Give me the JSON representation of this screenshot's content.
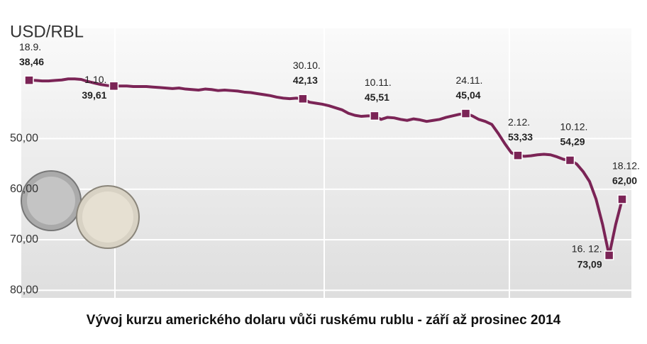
{
  "chart_data": {
    "type": "line",
    "title": "USD/RBL",
    "caption": "Vývoj kurzu amerického dolaru vůči ruskému rublu - září až prosinec 2014",
    "y_inverted": true,
    "grid": true,
    "ylim": [
      27.5,
      81.5
    ],
    "yticks": [
      {
        "value": 50,
        "label": "50,00"
      },
      {
        "value": 60,
        "label": "60,00"
      },
      {
        "value": 70,
        "label": "70,00"
      },
      {
        "value": 80,
        "label": "80,00"
      }
    ],
    "categories": [
      "18.9.",
      null,
      null,
      null,
      null,
      null,
      null,
      null,
      null,
      null,
      null,
      null,
      null,
      "1.10.",
      null,
      null,
      null,
      null,
      null,
      null,
      null,
      null,
      null,
      null,
      null,
      null,
      null,
      null,
      null,
      null,
      null,
      null,
      null,
      null,
      null,
      null,
      null,
      null,
      null,
      null,
      null,
      null,
      "30.10.",
      null,
      null,
      null,
      null,
      null,
      null,
      null,
      null,
      null,
      null,
      "10.11.",
      null,
      null,
      null,
      null,
      null,
      null,
      null,
      null,
      null,
      null,
      null,
      null,
      null,
      "24.11.",
      null,
      null,
      null,
      null,
      null,
      null,
      null,
      "2.12.",
      null,
      null,
      null,
      null,
      null,
      null,
      null,
      "10.12.",
      null,
      null,
      null,
      null,
      null,
      "16. 12.",
      null,
      "18.12."
    ],
    "series": [
      {
        "color": "#7b2456",
        "values": [
          38.46,
          38.5,
          38.6,
          38.6,
          38.5,
          38.4,
          38.2,
          38.2,
          38.3,
          38.7,
          39.0,
          39.3,
          39.5,
          39.61,
          39.6,
          39.6,
          39.7,
          39.7,
          39.7,
          39.8,
          39.9,
          40.0,
          40.1,
          40.0,
          40.2,
          40.3,
          40.4,
          40.2,
          40.3,
          40.5,
          40.4,
          40.5,
          40.6,
          40.8,
          40.9,
          41.1,
          41.3,
          41.5,
          41.8,
          42.0,
          42.1,
          42.0,
          42.13,
          42.8,
          43.0,
          43.2,
          43.5,
          43.9,
          44.3,
          45.0,
          45.4,
          45.6,
          45.5,
          45.51,
          46.2,
          45.8,
          45.9,
          46.2,
          46.4,
          46.1,
          46.3,
          46.6,
          46.4,
          46.2,
          45.8,
          45.5,
          45.2,
          45.04,
          45.5,
          46.2,
          46.6,
          47.2,
          49.0,
          51.0,
          52.8,
          53.33,
          53.5,
          53.4,
          53.2,
          53.1,
          53.2,
          53.6,
          54.1,
          54.29,
          55.0,
          56.5,
          58.5,
          62.0,
          67.0,
          73.09,
          67.0,
          62.0
        ],
        "value_labels": [
          "38,46",
          null,
          null,
          null,
          null,
          null,
          null,
          null,
          null,
          null,
          null,
          null,
          null,
          "39,61",
          null,
          null,
          null,
          null,
          null,
          null,
          null,
          null,
          null,
          null,
          null,
          null,
          null,
          null,
          null,
          null,
          null,
          null,
          null,
          null,
          null,
          null,
          null,
          null,
          null,
          null,
          null,
          null,
          "42,13",
          null,
          null,
          null,
          null,
          null,
          null,
          null,
          null,
          null,
          null,
          "45,51",
          null,
          null,
          null,
          null,
          null,
          null,
          null,
          null,
          null,
          null,
          null,
          null,
          null,
          "45,04",
          null,
          null,
          null,
          null,
          null,
          null,
          null,
          "53,33",
          null,
          null,
          null,
          null,
          null,
          null,
          null,
          "54,29",
          null,
          null,
          null,
          null,
          null,
          "73,09",
          null,
          "62,00"
        ]
      }
    ]
  }
}
